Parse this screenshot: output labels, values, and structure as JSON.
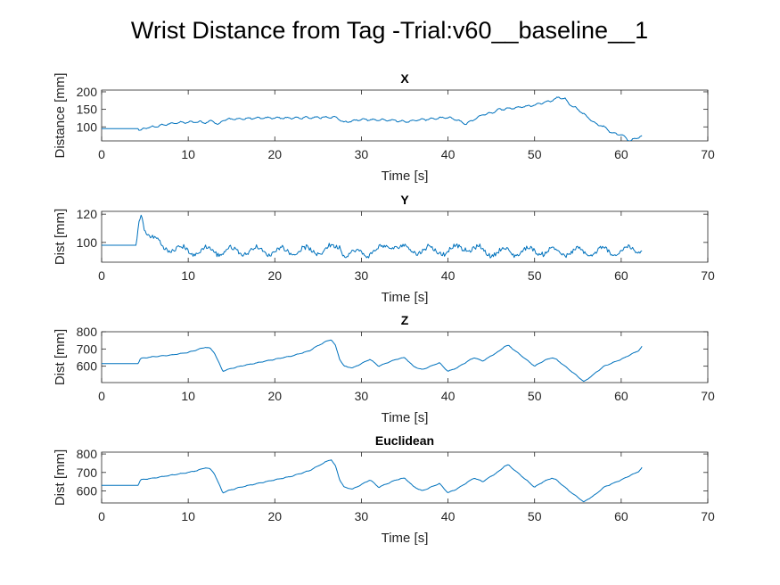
{
  "figure": {
    "title": "Wrist Distance from Tag -Trial:v60__baseline__1"
  },
  "colors": {
    "series": "#0072BD",
    "axes": "#262626"
  },
  "chart_data": [
    {
      "type": "line",
      "title": "X",
      "xlabel": "Time [s]",
      "ylabel": "Distance [mm]",
      "xlim": [
        0,
        70
      ],
      "ylim": [
        60,
        205
      ],
      "xticks": [
        0,
        10,
        20,
        30,
        40,
        50,
        60,
        70
      ],
      "yticks": [
        100,
        150,
        200
      ],
      "grid": false,
      "series": [
        {
          "x": [
            0,
            4.2,
            4.5,
            5,
            6,
            7,
            8,
            9,
            10,
            11,
            12,
            12.8,
            13.5,
            14,
            15,
            17,
            20,
            22,
            25,
            27,
            28,
            30,
            32,
            34,
            35,
            36,
            38,
            40,
            41,
            42,
            43,
            44,
            45,
            46,
            48,
            50,
            51,
            52,
            52.8,
            53.5,
            54,
            55,
            56,
            57,
            58,
            59,
            60,
            61,
            62,
            62.5
          ],
          "y": [
            95,
            95,
            88,
            97,
            100,
            105,
            110,
            112,
            113,
            114,
            112,
            118,
            105,
            120,
            122,
            124,
            126,
            125,
            127,
            128,
            113,
            121,
            120,
            119,
            114,
            118,
            123,
            127,
            120,
            108,
            121,
            135,
            140,
            150,
            155,
            162,
            170,
            175,
            185,
            180,
            165,
            150,
            130,
            110,
            100,
            82,
            78,
            60,
            70,
            75
          ]
        }
      ]
    },
    {
      "type": "line",
      "title": "Y",
      "xlabel": "Time [s]",
      "ylabel": "Dist [mm]",
      "xlim": [
        0,
        70
      ],
      "ylim": [
        86,
        122
      ],
      "xticks": [
        0,
        10,
        20,
        30,
        40,
        50,
        60,
        70
      ],
      "yticks": [
        100,
        120
      ],
      "grid": false,
      "series": [
        {
          "x": [
            0,
            4.0,
            4.3,
            4.6,
            5,
            5.5,
            6,
            7,
            8,
            9,
            10,
            15,
            20,
            25,
            27,
            27.5,
            28,
            29,
            30,
            32,
            33.5,
            35,
            40,
            42,
            43,
            45,
            50,
            55,
            60,
            62.5
          ],
          "y": [
            98,
            98,
            115,
            121,
            110,
            106,
            102,
            97,
            96,
            95,
            94,
            94,
            94,
            94,
            96,
            99,
            93,
            91,
            93,
            94,
            99,
            95,
            94,
            97,
            95,
            93,
            94,
            93,
            94,
            95
          ]
        }
      ]
    },
    {
      "type": "line",
      "title": "Z",
      "xlabel": "Time [s]",
      "ylabel": "Dist [mm]",
      "xlim": [
        0,
        70
      ],
      "ylim": [
        505,
        800
      ],
      "xticks": [
        0,
        10,
        20,
        30,
        40,
        50,
        60,
        70
      ],
      "yticks": [
        600,
        700,
        800
      ],
      "grid": false,
      "series": [
        {
          "x": [
            0,
            4.2,
            4.5,
            6,
            8,
            10,
            11,
            12,
            12.5,
            13,
            14,
            14.5,
            16,
            18,
            20,
            22,
            24,
            25,
            26,
            26.5,
            27,
            27.5,
            28,
            29,
            30,
            31,
            32,
            33,
            34,
            35,
            36,
            37,
            38,
            39,
            40,
            41,
            42,
            43,
            44,
            45,
            46,
            46.5,
            47,
            48,
            49,
            50,
            51,
            52,
            52.5,
            53,
            54,
            55,
            55.7,
            56,
            57,
            58,
            60,
            62,
            62.5
          ],
          "y": [
            615,
            615,
            645,
            655,
            665,
            680,
            695,
            710,
            705,
            680,
            570,
            580,
            600,
            620,
            640,
            660,
            690,
            720,
            745,
            755,
            720,
            640,
            600,
            590,
            615,
            640,
            600,
            620,
            640,
            650,
            600,
            580,
            600,
            620,
            570,
            590,
            620,
            650,
            630,
            660,
            690,
            715,
            720,
            680,
            640,
            600,
            630,
            650,
            640,
            620,
            580,
            540,
            510,
            520,
            560,
            600,
            640,
            690,
            720
          ]
        }
      ]
    },
    {
      "type": "line",
      "title": "Euclidean",
      "xlabel": "Time [s]",
      "ylabel": "Dist [mm]",
      "xlim": [
        0,
        70
      ],
      "ylim": [
        535,
        810
      ],
      "xticks": [
        0,
        10,
        20,
        30,
        40,
        50,
        60,
        70
      ],
      "yticks": [
        600,
        700,
        800
      ],
      "grid": false,
      "series": [
        {
          "x": [
            0,
            4.2,
            4.5,
            6,
            8,
            10,
            11,
            12,
            12.5,
            13,
            14,
            14.5,
            16,
            18,
            20,
            22,
            24,
            25,
            26,
            26.5,
            27,
            27.5,
            28,
            29,
            30,
            31,
            32,
            33,
            34,
            35,
            36,
            37,
            38,
            39,
            40,
            41,
            42,
            43,
            44,
            45,
            46,
            46.5,
            47,
            48,
            49,
            50,
            51,
            52,
            52.5,
            53,
            54,
            55,
            55.7,
            56,
            57,
            58,
            60,
            62,
            62.5
          ],
          "y": [
            630,
            630,
            660,
            670,
            685,
            700,
            710,
            725,
            720,
            695,
            590,
            600,
            620,
            640,
            660,
            680,
            710,
            735,
            760,
            770,
            735,
            660,
            620,
            610,
            635,
            660,
            620,
            640,
            660,
            670,
            625,
            600,
            620,
            640,
            590,
            610,
            640,
            670,
            650,
            680,
            710,
            735,
            740,
            700,
            660,
            620,
            650,
            670,
            660,
            640,
            600,
            565,
            540,
            550,
            580,
            620,
            660,
            705,
            730
          ]
        }
      ]
    }
  ]
}
